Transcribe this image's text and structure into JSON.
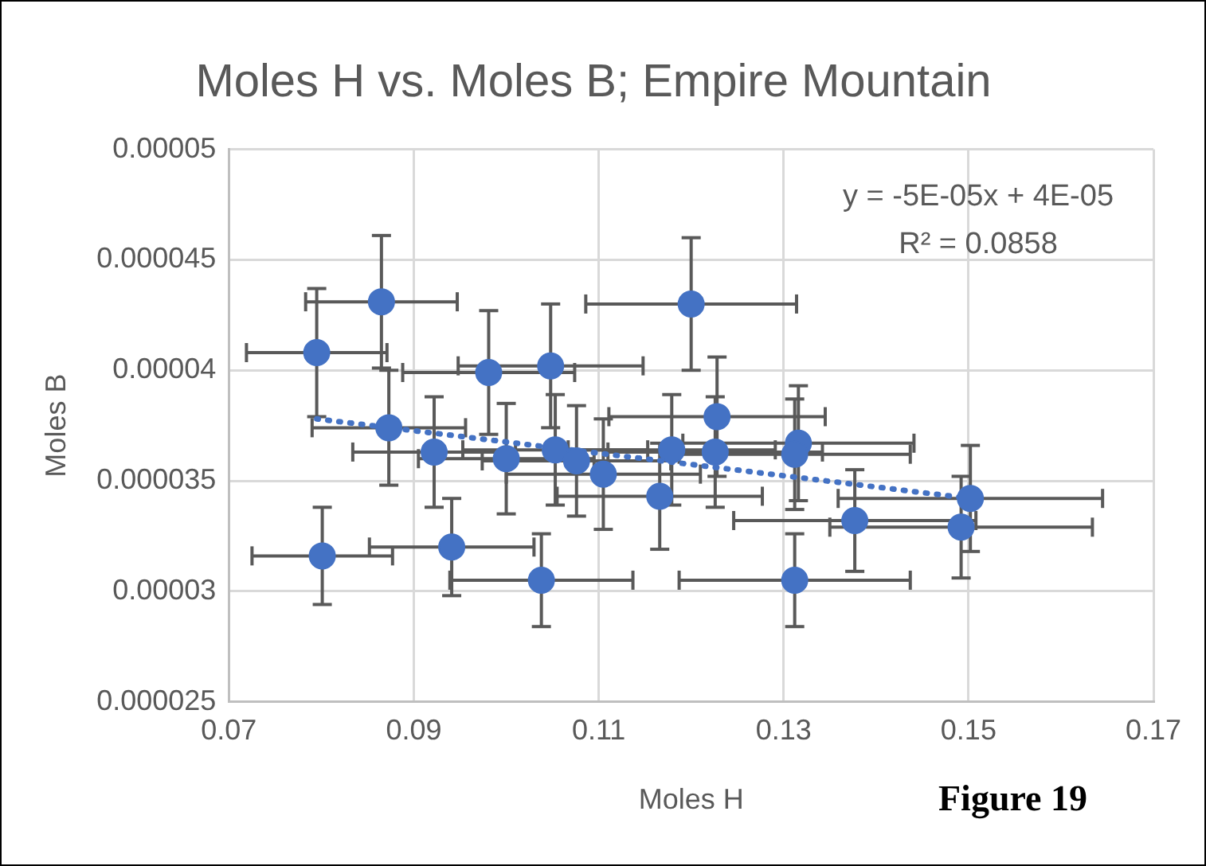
{
  "chart_data": {
    "type": "scatter",
    "title": "Moles H vs. Moles B; Empire Mountain",
    "xlabel": "Moles H",
    "ylabel": "Moles B",
    "annotations": [
      "y = -5E-05x + 4E-05",
      "R² = 0.0858",
      "Figure 19"
    ],
    "xlim": [
      0.07,
      0.17
    ],
    "xticks": [
      0.07,
      0.09,
      0.11,
      0.13,
      0.15,
      0.17
    ],
    "ylim": [
      2.5e-05,
      5e-05
    ],
    "yticks": [
      {
        "value": 2.5e-05,
        "label": "0.000025"
      },
      {
        "value": 3e-05,
        "label": "0.00003"
      },
      {
        "value": 3.5e-05,
        "label": "0.000035"
      },
      {
        "value": 4e-05,
        "label": "0.00004"
      },
      {
        "value": 4.5e-05,
        "label": "0.000045"
      },
      {
        "value": 5e-05,
        "label": "0.00005"
      }
    ],
    "grid": true,
    "legend": false,
    "marker": "circle",
    "series": [
      {
        "color": "#4472c4",
        "x": [
          0.0795,
          0.0865,
          0.0873,
          0.0922,
          0.0941,
          0.0801,
          0.0981,
          0.1048,
          0.1038,
          0.1,
          0.1053,
          0.1076,
          0.1105,
          0.1166,
          0.1179,
          0.12,
          0.1228,
          0.1226,
          0.1316,
          0.1312,
          0.1312,
          0.1377,
          0.1492,
          0.1502
        ],
        "values": [
          4.08e-05,
          4.31e-05,
          3.74e-05,
          3.63e-05,
          3.2e-05,
          3.16e-05,
          3.99e-05,
          4.02e-05,
          3.05e-05,
          3.6e-05,
          3.64e-05,
          3.59e-05,
          3.53e-05,
          3.43e-05,
          3.64e-05,
          4.3e-05,
          3.79e-05,
          3.63e-05,
          3.67e-05,
          3.62e-05,
          3.05e-05,
          3.32e-05,
          3.29e-05,
          3.42e-05
        ],
        "errors": [
          2.9e-06,
          3e-06,
          2.6e-06,
          2.5e-06,
          2.2e-06,
          2.2e-06,
          2.8e-06,
          2.8e-06,
          2.1e-06,
          2.5e-06,
          2.5e-06,
          2.5e-06,
          2.5e-06,
          2.4e-06,
          2.5e-06,
          3e-06,
          2.7e-06,
          2.5e-06,
          2.6e-06,
          2.5e-06,
          2.1e-06,
          2.3e-06,
          2.3e-06,
          2.4e-06
        ],
        "xerrors": [
          0.0076,
          0.0082,
          0.0083,
          0.0088,
          0.0089,
          0.0076,
          0.0093,
          0.01,
          0.0099,
          0.0095,
          0.01,
          0.0102,
          0.0105,
          0.0111,
          0.0112,
          0.0114,
          0.0117,
          0.0116,
          0.0125,
          0.0125,
          0.0125,
          0.0131,
          0.0142,
          0.0143
        ]
      },
      {
        "type": "line",
        "color": "#4472c4",
        "line_style": "dotted",
        "marker": "none",
        "x": [
          0.0795,
          0.1502
        ],
        "values": [
          3.78e-05,
          3.42e-05
        ]
      }
    ]
  }
}
